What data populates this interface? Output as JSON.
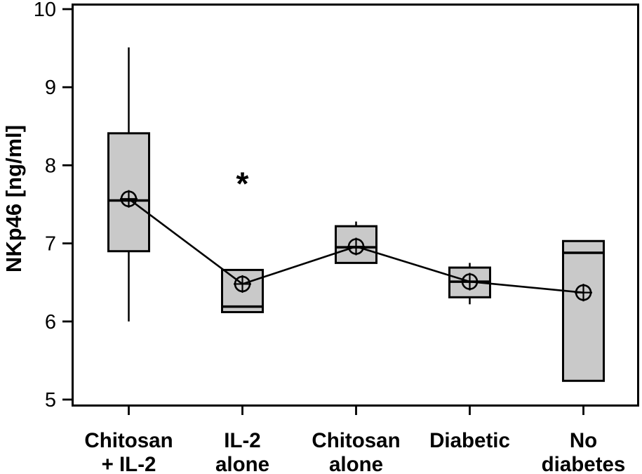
{
  "chart_data": {
    "type": "box",
    "ylabel": "NKp46 [ng/ml]",
    "ylim": [
      5,
      10
    ],
    "yticks": [
      "5",
      "6",
      "7",
      "8",
      "9",
      "10"
    ],
    "ytick_values": [
      5,
      6,
      7,
      8,
      9,
      10
    ],
    "grid": false,
    "legend": "none",
    "mean_markers_connected_by_line": true,
    "categories": [
      {
        "label": "Chitosan + IL-2",
        "label_lines": [
          "Chitosan",
          "+ IL-2"
        ],
        "whisker_low": 6.0,
        "q1": 6.9,
        "median": 7.55,
        "q3": 8.41,
        "whisker_high": 9.51,
        "mean": 7.57
      },
      {
        "label": "IL-2 alone",
        "label_lines": [
          "IL-2",
          "alone"
        ],
        "whisker_low": null,
        "q1": 6.12,
        "median": 6.19,
        "q3": 6.66,
        "whisker_high": null,
        "mean": 6.48
      },
      {
        "label": "Chitosan alone",
        "label_lines": [
          "Chitosan",
          "alone"
        ],
        "whisker_low": null,
        "q1": 6.75,
        "median": 6.95,
        "q3": 7.22,
        "whisker_high": 7.28,
        "mean": 6.96
      },
      {
        "label": "Diabetic",
        "label_lines": [
          "Diabetic"
        ],
        "whisker_low": 6.22,
        "q1": 6.31,
        "median": 6.51,
        "q3": 6.69,
        "whisker_high": 6.75,
        "mean": 6.51
      },
      {
        "label": "No diabetes",
        "label_lines": [
          "No",
          "diabetes"
        ],
        "whisker_low": null,
        "q1": 5.24,
        "median": 6.88,
        "q3": 7.03,
        "whisker_high": null,
        "mean": 6.37
      }
    ],
    "annotation": {
      "text": "*",
      "category_index": 1,
      "value": 7.83
    },
    "colors": {
      "box_fill": "#c9c9c9",
      "stroke": "#000000",
      "background": "#ffffff"
    }
  }
}
